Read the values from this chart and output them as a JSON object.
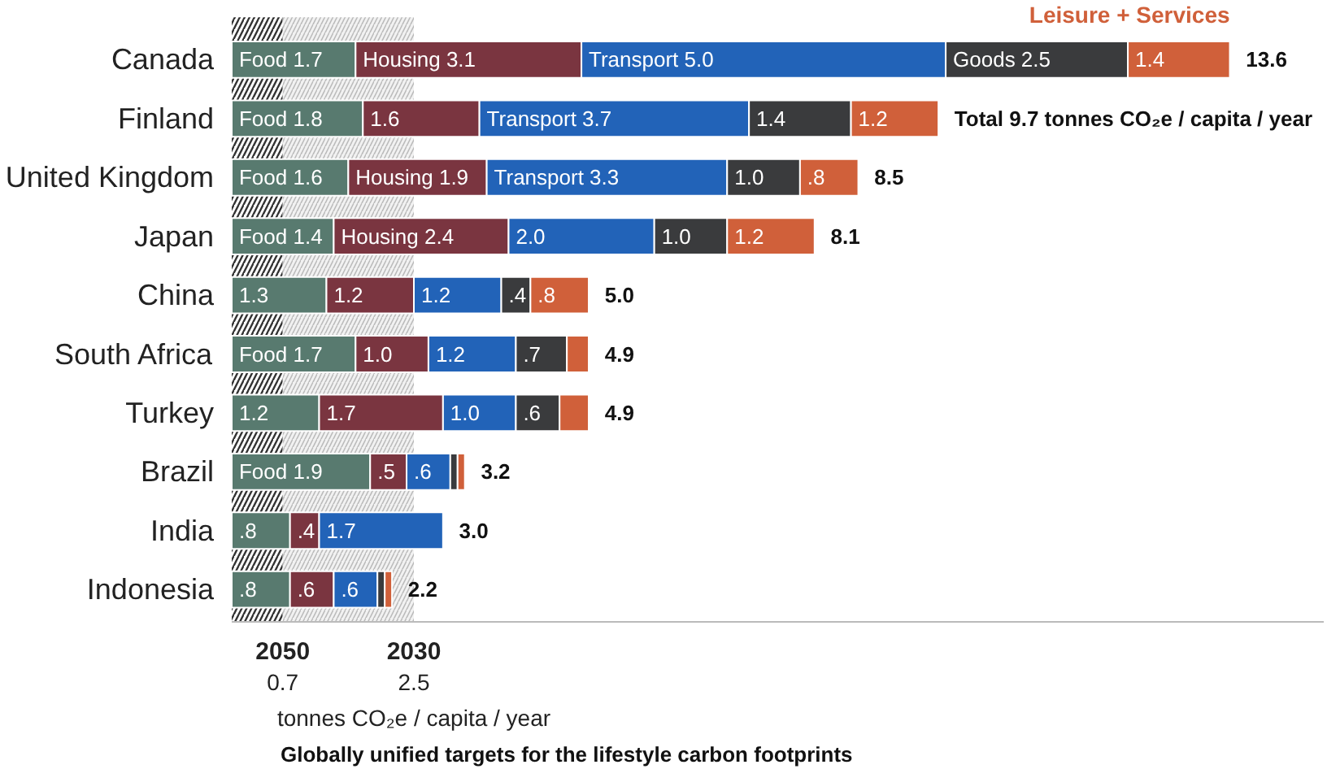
{
  "chart_data": {
    "type": "bar",
    "orientation": "horizontal",
    "stacked": true,
    "categories": [
      "Canada",
      "Finland",
      "United Kingdom",
      "Japan",
      "China",
      "South Africa",
      "Turkey",
      "Brazil",
      "India",
      "Indonesia"
    ],
    "series": [
      {
        "color": "#587a6f",
        "values": [
          1.7,
          1.8,
          1.6,
          1.4,
          1.3,
          1.7,
          1.2,
          1.9,
          0.8,
          0.8
        ],
        "value_labels": [
          "Food 1.7",
          "Food 1.8",
          "Food 1.6",
          "Food 1.4",
          "1.3",
          "Food 1.7",
          "1.2",
          "Food 1.9",
          ".8",
          ".8"
        ]
      },
      {
        "color": "#7a3540",
        "values": [
          3.1,
          1.6,
          1.9,
          2.4,
          1.2,
          1.0,
          1.7,
          0.5,
          0.4,
          0.6
        ],
        "value_labels": [
          "Housing 3.1",
          "1.6",
          "Housing 1.9",
          "Housing 2.4",
          "1.2",
          "1.0",
          "1.7",
          ".5",
          ".4",
          ".6"
        ]
      },
      {
        "color": "#2263b8",
        "values": [
          5.0,
          3.7,
          3.3,
          2.0,
          1.2,
          1.2,
          1.0,
          0.6,
          1.7,
          0.6
        ],
        "value_labels": [
          "Transport 5.0",
          "Transport 3.7",
          "Transport 3.3",
          "2.0",
          "1.2",
          "1.2",
          "1.0",
          ".6",
          "1.7",
          ".6"
        ]
      },
      {
        "color": "#3a3b3d",
        "values": [
          2.5,
          1.4,
          1.0,
          1.0,
          0.4,
          0.7,
          0.6,
          0.1,
          null,
          0.1
        ],
        "value_labels": [
          "Goods 2.5",
          "1.4",
          "1.0",
          "1.0",
          ".4",
          ".7",
          ".6",
          null,
          null,
          null
        ]
      },
      {
        "name": "Leisure + Services",
        "color": "#d0603a",
        "values": [
          1.4,
          1.2,
          0.8,
          1.2,
          0.8,
          0.3,
          0.4,
          0.1,
          null,
          0.1
        ],
        "value_labels": [
          "1.4",
          "1.2",
          ".8",
          "1.2",
          ".8",
          null,
          null,
          null,
          null,
          null
        ]
      }
    ],
    "totals": [
      "13.6",
      "Total 9.7 tonnes CO₂e / capita / year",
      "8.5",
      "8.1",
      "5.0",
      "4.9",
      "4.9",
      "3.2",
      "3.0",
      "2.2"
    ],
    "xlim": [
      0,
      15
    ],
    "xticks": [
      0.7,
      2.5
    ],
    "bands": [
      {
        "axis": "x",
        "from": 0,
        "to": 0.7,
        "label": "2050",
        "color": "#333333"
      },
      {
        "axis": "x",
        "from": 0.7,
        "to": 2.5,
        "label": "2030",
        "color": "#bbbbbb"
      }
    ],
    "tick_labels": "xy",
    "grid": false,
    "annotations": [
      "tonnes CO₂e / capita / year",
      "Globally unified targets for the lifestyle carbon footprints"
    ]
  }
}
